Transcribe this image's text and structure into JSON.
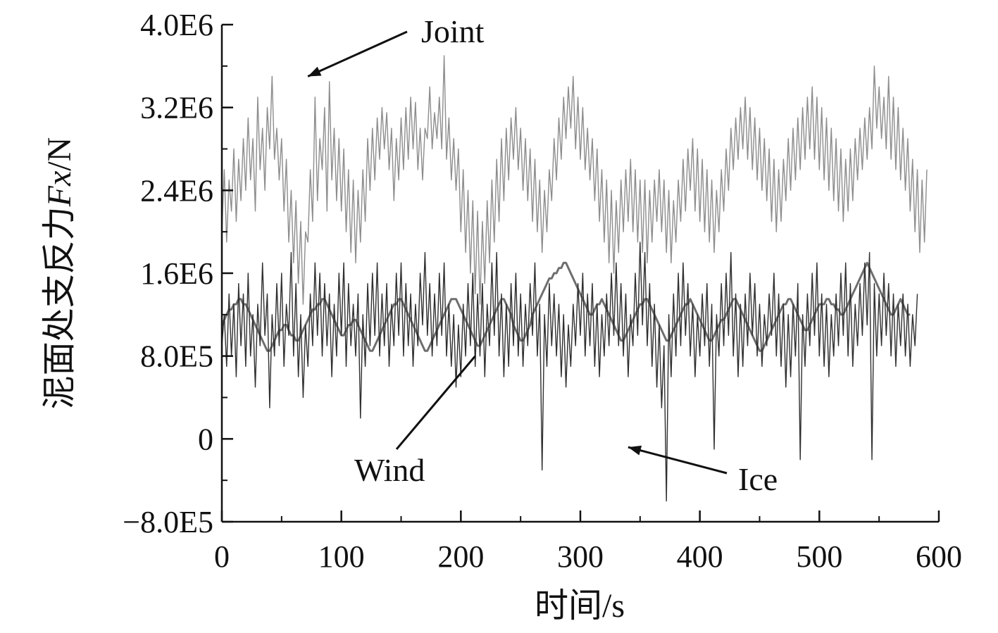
{
  "chart_data": {
    "type": "line",
    "title": "",
    "xlabel": "时间/s",
    "ylabel_prefix": "泥面处支反力",
    "ylabel_var": "Fx",
    "ylabel_unit": "/N",
    "xlim": [
      0,
      600
    ],
    "ylim": [
      -800000,
      4000000
    ],
    "x_ticks": [
      0,
      100,
      200,
      300,
      400,
      500,
      600
    ],
    "x_tick_labels": [
      "0",
      "100",
      "200",
      "300",
      "400",
      "500",
      "600"
    ],
    "y_ticks": [
      -800000,
      0,
      800000,
      1600000,
      2400000,
      3200000,
      4000000
    ],
    "y_tick_labels": [
      "−8.0E5",
      "0",
      "8.0E5",
      "1.6E6",
      "2.4E6",
      "3.2E6",
      "4.0E6"
    ],
    "grid": false,
    "legend": "none",
    "x_sample_step_s": 2,
    "annotations": [
      {
        "text": "Joint",
        "series": "Joint",
        "point_to": [
          72,
          3500000
        ]
      },
      {
        "text": "Wind",
        "series": "Wind",
        "point_to": [
          212,
          800000
        ]
      },
      {
        "text": "Ice",
        "series": "Ice",
        "point_to": [
          340,
          -80000
        ]
      }
    ],
    "series": [
      {
        "name": "Joint",
        "color": "#8c8c8c",
        "values": [
          2000000,
          2600000,
          1900000,
          2500000,
          2200000,
          2800000,
          2100000,
          2700000,
          2300000,
          2900000,
          2400000,
          3100000,
          2500000,
          2900000,
          2200000,
          3300000,
          2600000,
          3000000,
          2400000,
          3200000,
          2800000,
          3500000,
          2700000,
          3000000,
          2500000,
          2900000,
          2200000,
          2700000,
          1900000,
          2400000,
          1700000,
          2300000,
          1500000,
          2100000,
          1300000,
          2000000,
          1900000,
          2600000,
          2100000,
          3300000,
          2300000,
          2900000,
          2600000,
          3200000,
          2200000,
          3450000,
          2500000,
          3000000,
          2300000,
          2900000,
          2200000,
          2800000,
          2000000,
          2600000,
          1800000,
          2500000,
          1700000,
          2400000,
          1900000,
          2600000,
          2100000,
          2900000,
          2400000,
          3000000,
          2500000,
          3100000,
          2700000,
          3200000,
          2800000,
          3150000,
          2600000,
          3000000,
          2300000,
          2900000,
          2500000,
          3100000,
          2600000,
          3200000,
          2700000,
          3300000,
          2800000,
          3250000,
          2600000,
          3000000,
          2500000,
          3000000,
          2900000,
          3400000,
          2800000,
          3150000,
          2900000,
          3300000,
          2800000,
          3700000,
          2700000,
          3100000,
          2500000,
          2900000,
          2400000,
          2800000,
          2000000,
          2600000,
          1800000,
          2400000,
          1600000,
          2300000,
          1400000,
          2200000,
          1300000,
          2100000,
          1500000,
          2300000,
          1700000,
          2500000,
          1900000,
          2700000,
          2100000,
          2900000,
          2300000,
          3000000,
          2500000,
          3100000,
          2700000,
          3200000,
          2600000,
          3000000,
          2400000,
          2900000,
          2300000,
          2800000,
          2100000,
          2700000,
          2000000,
          2500000,
          1800000,
          2400000,
          2000000,
          2600000,
          2300000,
          2900000,
          2500000,
          3100000,
          2700000,
          3300000,
          2900000,
          3400000,
          3000000,
          3500000,
          2800000,
          3300000,
          2700000,
          3200000,
          2600000,
          3000000,
          2500000,
          2900000,
          2300000,
          2800000,
          2100000,
          2600000,
          1900000,
          2500000,
          1700000,
          2400000,
          1600000,
          2300000,
          1800000,
          2500000,
          2000000,
          2600000,
          2100000,
          2700000,
          2000000,
          2600000,
          1900000,
          2500000,
          1800000,
          2500000,
          1700000,
          2400000,
          1900000,
          2500000,
          2100000,
          2600000,
          2000000,
          2500000,
          1800000,
          2400000,
          1700000,
          2300000,
          1900000,
          2500000,
          2100000,
          2700000,
          2200000,
          2800000,
          2400000,
          2900000,
          2200000,
          2800000,
          2100000,
          2700000,
          2000000,
          2600000,
          1900000,
          2500000,
          1800000,
          2400000,
          2000000,
          2600000,
          2200000,
          2800000,
          2400000,
          3000000,
          2600000,
          3100000,
          2700000,
          3200000,
          2800000,
          3300000,
          2700000,
          3200000,
          2600000,
          3100000,
          2500000,
          3000000,
          2400000,
          2900000,
          2300000,
          2800000,
          2100000,
          2700000,
          2000000,
          2600000,
          2100000,
          2700000,
          2300000,
          2900000,
          2400000,
          3000000,
          2500000,
          3100000,
          2600000,
          3200000,
          2700000,
          3300000,
          2800000,
          3400000,
          2700000,
          3300000,
          2600000,
          3200000,
          2500000,
          3100000,
          2400000,
          3000000,
          2300000,
          2900000,
          2200000,
          2800000,
          2100000,
          2700000,
          2200000,
          2800000,
          2300000,
          2900000,
          2500000,
          3000000,
          2600000,
          3100000,
          2700000,
          3200000,
          2800000,
          3600000,
          3000000,
          3400000,
          2900000,
          3300000,
          2800000,
          3500000,
          2700000,
          3300000,
          2600000,
          3200000,
          2500000,
          3000000,
          2400000,
          2900000,
          2200000,
          2700000,
          2000000,
          2600000,
          1800000,
          2500000,
          1900000,
          2600000
        ]
      },
      {
        "name": "Wind",
        "color": "#6e6e6e",
        "values": [
          1100000,
          1150000,
          1200000,
          1250000,
          1250000,
          1300000,
          1300000,
          1350000,
          1350000,
          1300000,
          1300000,
          1250000,
          1200000,
          1150000,
          1100000,
          1050000,
          1000000,
          950000,
          900000,
          850000,
          850000,
          900000,
          950000,
          1000000,
          1050000,
          1050000,
          1100000,
          1100000,
          1050000,
          1000000,
          1000000,
          950000,
          950000,
          1000000,
          1050000,
          1100000,
          1150000,
          1200000,
          1250000,
          1250000,
          1300000,
          1300000,
          1350000,
          1350000,
          1300000,
          1250000,
          1200000,
          1150000,
          1100000,
          1050000,
          1000000,
          1000000,
          1050000,
          1100000,
          1100000,
          1150000,
          1150000,
          1100000,
          1050000,
          1000000,
          950000,
          900000,
          850000,
          850000,
          900000,
          950000,
          1000000,
          1050000,
          1100000,
          1150000,
          1200000,
          1250000,
          1300000,
          1300000,
          1350000,
          1350000,
          1300000,
          1250000,
          1200000,
          1150000,
          1100000,
          1050000,
          1000000,
          950000,
          900000,
          850000,
          850000,
          900000,
          950000,
          1000000,
          1050000,
          1100000,
          1150000,
          1200000,
          1250000,
          1300000,
          1350000,
          1350000,
          1350000,
          1300000,
          1250000,
          1200000,
          1150000,
          1100000,
          1050000,
          1000000,
          950000,
          900000,
          900000,
          950000,
          1000000,
          1050000,
          1100000,
          1150000,
          1200000,
          1250000,
          1300000,
          1350000,
          1350000,
          1300000,
          1250000,
          1200000,
          1100000,
          1050000,
          1000000,
          950000,
          950000,
          1000000,
          1050000,
          1100000,
          1200000,
          1250000,
          1300000,
          1350000,
          1400000,
          1450000,
          1500000,
          1550000,
          1550000,
          1600000,
          1600000,
          1650000,
          1650000,
          1700000,
          1700000,
          1650000,
          1600000,
          1550000,
          1500000,
          1450000,
          1400000,
          1350000,
          1300000,
          1250000,
          1200000,
          1200000,
          1250000,
          1300000,
          1300000,
          1350000,
          1300000,
          1250000,
          1200000,
          1150000,
          1100000,
          1050000,
          1000000,
          950000,
          950000,
          1000000,
          1050000,
          1100000,
          1150000,
          1200000,
          1250000,
          1300000,
          1300000,
          1350000,
          1350000,
          1300000,
          1250000,
          1200000,
          1150000,
          1100000,
          1050000,
          1000000,
          950000,
          950000,
          1000000,
          1050000,
          1100000,
          1150000,
          1200000,
          1250000,
          1300000,
          1300000,
          1350000,
          1300000,
          1250000,
          1200000,
          1150000,
          1100000,
          1050000,
          1000000,
          950000,
          950000,
          1000000,
          1050000,
          1100000,
          1150000,
          1150000,
          1200000,
          1250000,
          1300000,
          1350000,
          1350000,
          1300000,
          1250000,
          1200000,
          1150000,
          1100000,
          1050000,
          1000000,
          950000,
          900000,
          850000,
          850000,
          900000,
          950000,
          1000000,
          1050000,
          1100000,
          1150000,
          1200000,
          1250000,
          1300000,
          1300000,
          1350000,
          1350000,
          1300000,
          1250000,
          1200000,
          1150000,
          1100000,
          1050000,
          1050000,
          1100000,
          1150000,
          1200000,
          1250000,
          1300000,
          1300000,
          1300000,
          1350000,
          1350000,
          1300000,
          1300000,
          1250000,
          1250000,
          1200000,
          1200000,
          1250000,
          1300000,
          1350000,
          1400000,
          1450000,
          1500000,
          1550000,
          1600000,
          1650000,
          1700000,
          1650000,
          1600000,
          1550000,
          1500000,
          1450000,
          1400000,
          1350000,
          1300000,
          1250000,
          1200000,
          1200000,
          1250000,
          1300000,
          1350000,
          1300000,
          1250000,
          1200000,
          1200000
        ]
      },
      {
        "name": "Ice",
        "color": "#2e2e2e",
        "values": [
          900000,
          1200000,
          700000,
          1400000,
          800000,
          1300000,
          600000,
          1500000,
          900000,
          1400000,
          700000,
          1600000,
          800000,
          1200000,
          500000,
          1300000,
          900000,
          1700000,
          1000000,
          1400000,
          300000,
          1200000,
          800000,
          1500000,
          900000,
          1600000,
          700000,
          1300000,
          1000000,
          1800000,
          800000,
          1500000,
          600000,
          1200000,
          400000,
          1100000,
          700000,
          1400000,
          900000,
          1700000,
          1000000,
          1600000,
          800000,
          1500000,
          900000,
          1400000,
          600000,
          1300000,
          800000,
          1600000,
          1000000,
          1700000,
          700000,
          1500000,
          900000,
          1300000,
          800000,
          1400000,
          200000,
          1200000,
          700000,
          1500000,
          900000,
          1600000,
          1000000,
          1700000,
          800000,
          1400000,
          900000,
          1500000,
          700000,
          1300000,
          900000,
          1600000,
          1000000,
          1700000,
          800000,
          1500000,
          900000,
          1400000,
          700000,
          1300000,
          900000,
          1600000,
          1100000,
          1800000,
          1000000,
          1500000,
          800000,
          1400000,
          900000,
          1600000,
          1000000,
          1700000,
          800000,
          1300000,
          700000,
          1200000,
          500000,
          1100000,
          600000,
          1300000,
          800000,
          1500000,
          900000,
          1600000,
          700000,
          1400000,
          800000,
          1500000,
          600000,
          1300000,
          900000,
          1700000,
          1000000,
          1800000,
          800000,
          1400000,
          600000,
          1300000,
          700000,
          1500000,
          900000,
          1600000,
          800000,
          1400000,
          700000,
          1300000,
          900000,
          1500000,
          1000000,
          1700000,
          800000,
          1300000,
          -300000,
          1200000,
          700000,
          1500000,
          900000,
          1400000,
          800000,
          1300000,
          600000,
          1200000,
          500000,
          1100000,
          700000,
          1300000,
          900000,
          1500000,
          1000000,
          1600000,
          800000,
          1400000,
          900000,
          1500000,
          700000,
          1300000,
          600000,
          1200000,
          800000,
          1400000,
          900000,
          1600000,
          1000000,
          1700000,
          900000,
          1500000,
          800000,
          1400000,
          600000,
          1200000,
          900000,
          1600000,
          1000000,
          1900000,
          1100000,
          1800000,
          900000,
          1500000,
          700000,
          1300000,
          500000,
          1100000,
          300000,
          900000,
          -600000,
          1200000,
          600000,
          1400000,
          800000,
          1600000,
          900000,
          1700000,
          1000000,
          1500000,
          800000,
          1300000,
          600000,
          1200000,
          800000,
          1400000,
          900000,
          1500000,
          700000,
          1300000,
          -100000,
          1200000,
          800000,
          1500000,
          900000,
          1600000,
          1000000,
          1800000,
          800000,
          1400000,
          600000,
          1300000,
          700000,
          1400000,
          900000,
          1600000,
          1000000,
          1500000,
          800000,
          1300000,
          700000,
          1200000,
          900000,
          1400000,
          1000000,
          1600000,
          800000,
          1400000,
          700000,
          1300000,
          500000,
          1200000,
          600000,
          1300000,
          800000,
          1500000,
          -200000,
          1200000,
          700000,
          1400000,
          900000,
          1600000,
          1000000,
          1700000,
          800000,
          1400000,
          700000,
          1300000,
          600000,
          1200000,
          800000,
          1400000,
          900000,
          1600000,
          1000000,
          1700000,
          800000,
          1500000,
          700000,
          1300000,
          900000,
          1500000,
          1000000,
          1700000,
          1100000,
          1800000,
          -200000,
          1500000,
          800000,
          1400000,
          900000,
          1600000,
          1000000,
          1500000,
          800000,
          1400000,
          700000,
          1300000,
          900000,
          1400000,
          800000,
          1300000,
          700000,
          1200000,
          900000,
          1400000
        ]
      }
    ]
  }
}
